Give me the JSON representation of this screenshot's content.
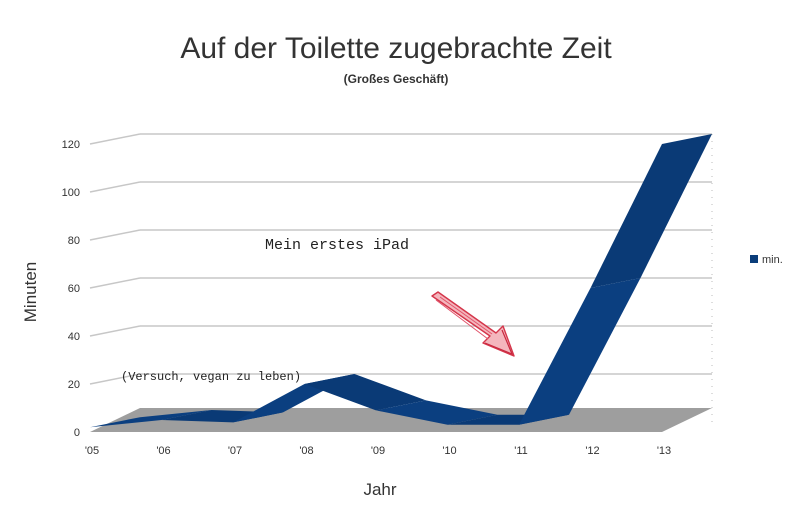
{
  "chart_data": {
    "type": "area",
    "title": "Auf der Toilette zugebrachte Zeit",
    "subtitle": "(Großes Geschäft)",
    "xlabel": "Jahr",
    "ylabel": "Minuten",
    "categories": [
      "'05",
      "'06",
      "'07",
      "'08",
      "'09",
      "'10",
      "'11",
      "'12",
      "'13"
    ],
    "series": [
      {
        "name": "min.",
        "values": [
          2,
          5,
          4,
          20,
          9,
          3,
          3,
          60,
          120
        ],
        "color": "#0a3d7a"
      }
    ],
    "y_ticks": [
      "0",
      "20",
      "40",
      "60",
      "80",
      "100",
      "120"
    ],
    "ylim": [
      0,
      120
    ],
    "grid": true,
    "legend_position": "right",
    "annotations": {
      "ipad": "Mein erstes iPad",
      "vegan": "(Versuch, vegan zu leben)"
    }
  }
}
